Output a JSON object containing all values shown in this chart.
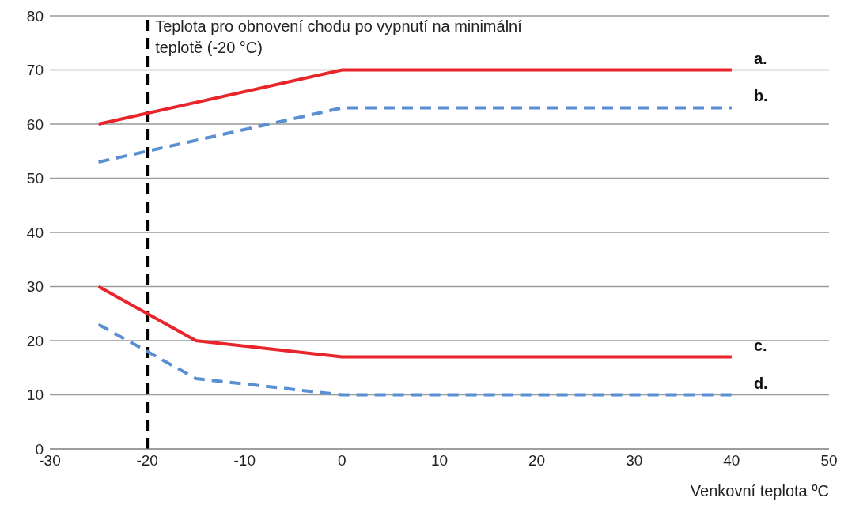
{
  "chart_data": {
    "type": "line",
    "xlabel": "Venkovní teplota ºC",
    "xlim": [
      -30,
      50
    ],
    "xticks": [
      -30,
      -20,
      -10,
      0,
      10,
      20,
      30,
      40,
      50
    ],
    "ylim": [
      0,
      80
    ],
    "yticks": [
      0,
      10,
      20,
      30,
      40,
      50,
      60,
      70,
      80
    ],
    "grid": "y",
    "marker": "none",
    "series": [
      {
        "name": "a.",
        "color": "#e8252a",
        "line_style": "solid",
        "x": [
          -25,
          0,
          40
        ],
        "values": [
          60,
          70,
          70
        ]
      },
      {
        "name": "b.",
        "color": "#5b8fd4",
        "line_style": "dashed",
        "x": [
          -25,
          0,
          40
        ],
        "values": [
          53,
          63,
          63
        ]
      },
      {
        "name": "c.",
        "color": "#e8252a",
        "line_style": "solid",
        "x": [
          -25,
          -15,
          0,
          40
        ],
        "values": [
          30,
          20,
          17,
          17
        ]
      },
      {
        "name": "d.",
        "color": "#5b8fd4",
        "line_style": "dashed",
        "x": [
          -25,
          -15,
          0,
          40
        ],
        "values": [
          23,
          13,
          10,
          10
        ]
      }
    ],
    "ref_lines": [
      {
        "axis": "x",
        "value": -20,
        "label": "Teplota pro obnovení chodu po vypnutí na minimální teplotě (-20 °C)",
        "color": "#000000",
        "line_style": "dashed"
      }
    ]
  }
}
